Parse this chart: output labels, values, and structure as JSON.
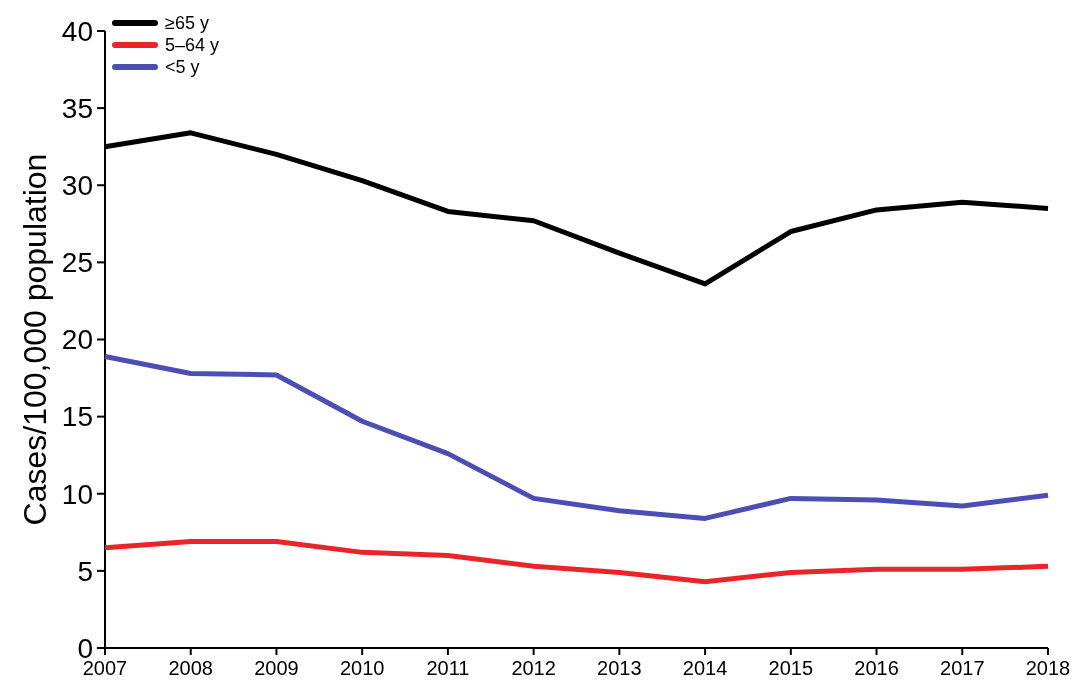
{
  "chart_data": {
    "type": "line",
    "ylabel": "Cases/100,000 population",
    "categories": [
      "2007",
      "2008",
      "2009",
      "2010",
      "2011",
      "2012",
      "2013",
      "2014",
      "2015",
      "2016",
      "2017",
      "2018"
    ],
    "series": [
      {
        "name": "≥65 y",
        "color": "#000000",
        "values": [
          32.5,
          33.4,
          32.0,
          30.3,
          28.3,
          27.7,
          25.6,
          23.6,
          27.0,
          28.4,
          28.9,
          28.5
        ]
      },
      {
        "name": "5–64 y",
        "color": "#e8262a",
        "values": [
          6.5,
          6.9,
          6.9,
          6.2,
          6.0,
          5.3,
          4.9,
          4.3,
          4.9,
          5.1,
          5.1,
          5.3
        ]
      },
      {
        "name": "<5 y",
        "color": "#4b4fb4",
        "values": [
          18.9,
          17.8,
          17.7,
          14.7,
          12.6,
          9.7,
          8.9,
          8.4,
          9.7,
          9.6,
          9.2,
          9.9
        ]
      }
    ],
    "ylim": [
      0,
      40
    ],
    "yticks": [
      0,
      5,
      10,
      15,
      20,
      25,
      30,
      35,
      40
    ],
    "grid": false,
    "legend": "top left",
    "marker": "none",
    "line_style": "solid"
  }
}
